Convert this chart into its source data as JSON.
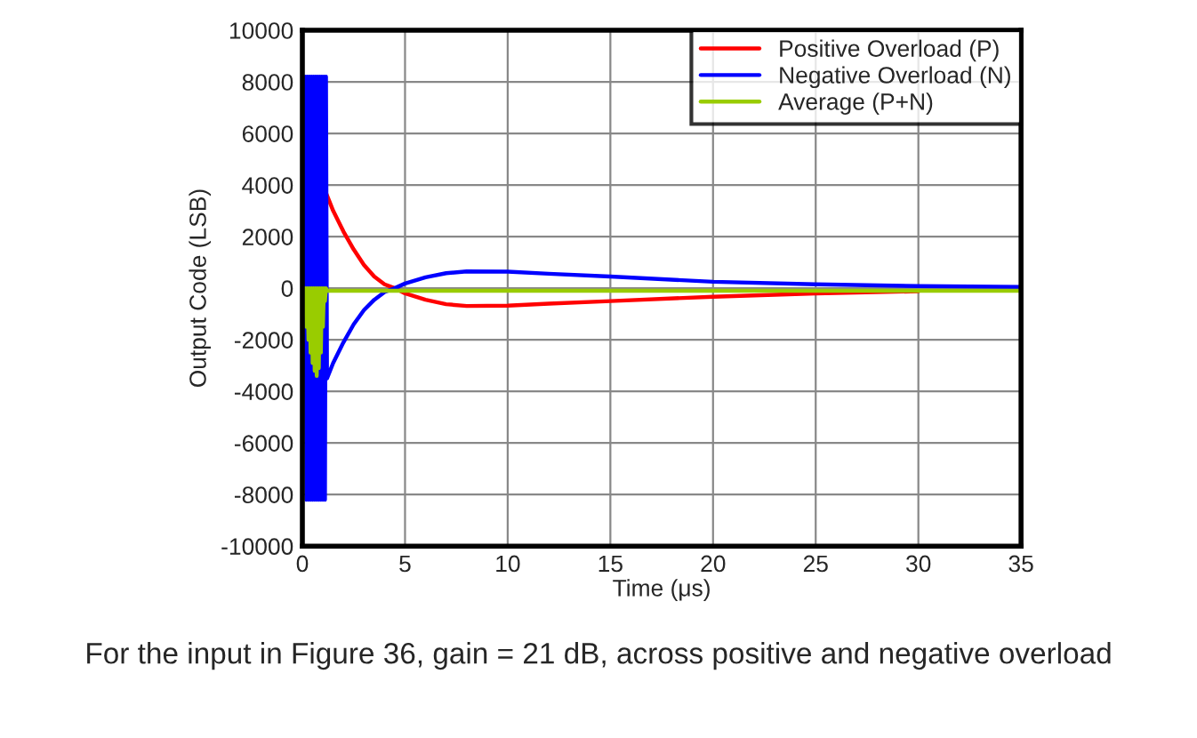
{
  "chart_data": {
    "type": "line",
    "xlabel": "Time (μs)",
    "ylabel": "Output Code (LSB)",
    "xlim": [
      0,
      35
    ],
    "xticks": [
      0,
      5,
      10,
      15,
      20,
      25,
      30,
      35
    ],
    "ylim": [
      -10000,
      10000
    ],
    "yticks": [
      -10000,
      -8000,
      -6000,
      -4000,
      -2000,
      0,
      2000,
      4000,
      6000,
      8000,
      10000
    ],
    "grid": true,
    "legend": "top right",
    "marker": "none",
    "line_style": "solid",
    "annotations": [
      "For the input in Figure 36, gain = 21 dB, across positive and negative overload"
    ],
    "series": [
      {
        "name": "Positive Overload (P)",
        "color": "#ff0000",
        "x": [
          1.15,
          1.5,
          2,
          2.5,
          3,
          3.5,
          4,
          4.5,
          5,
          6,
          7,
          8,
          10,
          12,
          15,
          20,
          25,
          30
        ],
        "values": [
          3700,
          3000,
          2200,
          1500,
          900,
          450,
          150,
          0,
          -200,
          -450,
          -620,
          -690,
          -680,
          -600,
          -500,
          -330,
          -200,
          -120
        ]
      },
      {
        "name": "Negative Overload (N)",
        "color": "#0000ff",
        "x": [
          0.15,
          0.2,
          0.25,
          0.3,
          0.35,
          0.4,
          0.45,
          0.5,
          0.55,
          0.6,
          0.65,
          0.7,
          0.75,
          0.8,
          0.85,
          0.9,
          0.95,
          1.0,
          1.05,
          1.1,
          1.15,
          1.2,
          1.5,
          2,
          2.5,
          3,
          3.5,
          4,
          4.5,
          5,
          6,
          7,
          8,
          10,
          12,
          15,
          20,
          25,
          30,
          35
        ],
        "values": [
          8200,
          -8200,
          8200,
          -8200,
          8200,
          -8200,
          8200,
          -8200,
          8200,
          -8200,
          8200,
          -8200,
          8200,
          -8200,
          8200,
          -8200,
          8200,
          -8200,
          8200,
          -8200,
          8200,
          -3500,
          -2900,
          -2100,
          -1400,
          -850,
          -450,
          -150,
          0,
          180,
          420,
          580,
          650,
          640,
          560,
          450,
          250,
          150,
          80,
          50
        ]
      },
      {
        "name": "Average (P+N)",
        "color": "#99cc00",
        "x": [
          0.1,
          0.15,
          0.2,
          0.25,
          0.3,
          0.35,
          0.4,
          0.45,
          0.5,
          0.55,
          0.6,
          0.65,
          0.7,
          0.75,
          0.8,
          0.85,
          0.9,
          0.95,
          1.0,
          1.05,
          1.1,
          1.15,
          1.2,
          2,
          5,
          10,
          20,
          35
        ],
        "values": [
          -1000,
          0,
          -1500,
          0,
          -2000,
          0,
          -2500,
          0,
          -2900,
          0,
          -3200,
          0,
          -3400,
          0,
          -3100,
          0,
          -2500,
          0,
          -1500,
          0,
          -500,
          0,
          -100,
          -100,
          -100,
          -100,
          -100,
          -100
        ]
      }
    ]
  }
}
